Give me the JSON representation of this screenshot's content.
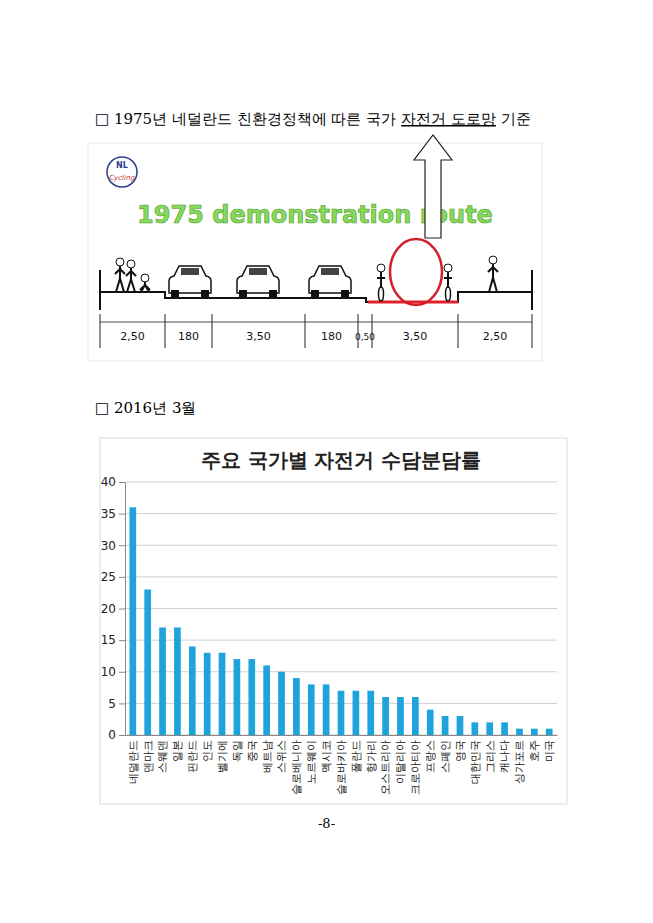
{
  "heading_1": {
    "before": "□ 1975년 네덜란드 친환경정책에 따른 국가",
    "underlined": "자전거 도로망",
    "after": "기준"
  },
  "diagram": {
    "logo": [
      "NL",
      "Cycling"
    ],
    "title": "1975 demonstration route",
    "dimensions": [
      "2,50",
      "180",
      "3,50",
      "180",
      "0,50",
      "3,50",
      "2,50"
    ]
  },
  "heading_2": "□ 2016년 3월",
  "chart_data": {
    "type": "bar",
    "title": "주요 국가별 자전거 수담분담률",
    "categories": [
      "네덜란드",
      "덴마크",
      "스웨덴",
      "일본",
      "핀란드",
      "인도",
      "벨기에",
      "독일",
      "중국",
      "베트남",
      "스위스",
      "슬로베니아",
      "노르웨이",
      "멕시코",
      "슬로바키아",
      "폴란드",
      "헝가리",
      "오스트리아",
      "이탈리아",
      "크로아티아",
      "프랑스",
      "스페인",
      "영국",
      "대한민국",
      "그리스",
      "캐나다",
      "싱가포르",
      "호주",
      "미국"
    ],
    "values": [
      36,
      23,
      17,
      17,
      14,
      13,
      13,
      12,
      12,
      11,
      10,
      9,
      8,
      8,
      7,
      7,
      7,
      6,
      6,
      6,
      4,
      3,
      3,
      2,
      2,
      2,
      1,
      1,
      1
    ],
    "color": "#1fa3dc",
    "ylim": [
      0,
      40
    ],
    "yticks": [
      0,
      5,
      10,
      15,
      20,
      25,
      30,
      35,
      40
    ],
    "grid": true
  },
  "page_number": "-8-"
}
